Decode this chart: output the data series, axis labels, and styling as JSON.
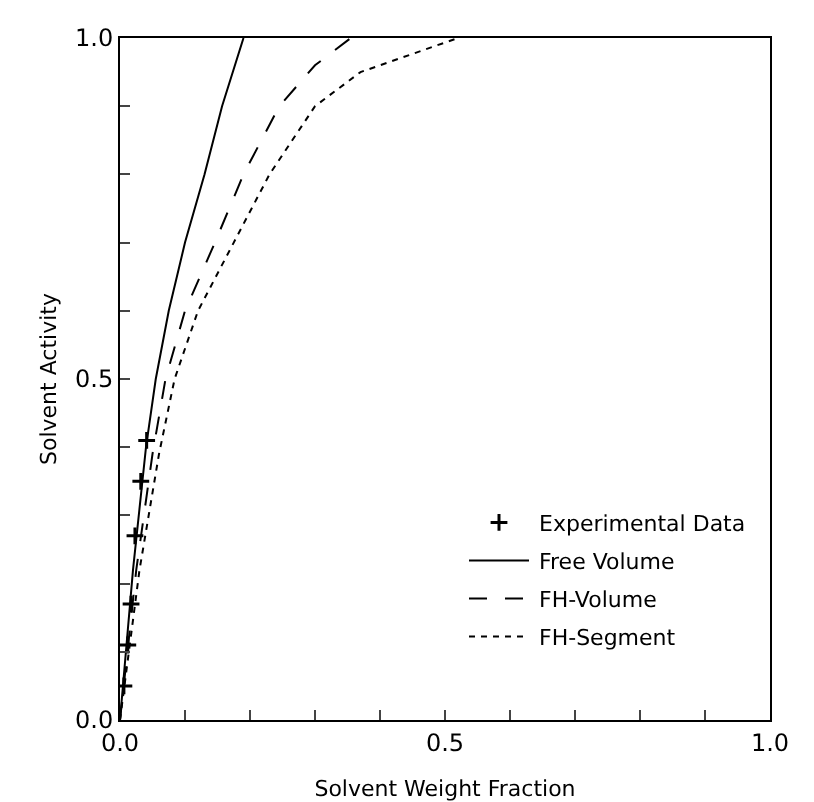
{
  "chart_data": {
    "type": "line",
    "xlabel": "Solvent Weight Fraction",
    "ylabel": "Solvent Activity",
    "xlim": [
      0,
      1
    ],
    "ylim": [
      0,
      1
    ],
    "xticks": [
      {
        "value": 0,
        "label": "0.0"
      },
      {
        "value": 0.1,
        "label": null
      },
      {
        "value": 0.2,
        "label": null
      },
      {
        "value": 0.3,
        "label": null
      },
      {
        "value": 0.4,
        "label": null
      },
      {
        "value": 0.5,
        "label": "0.5"
      },
      {
        "value": 0.6,
        "label": null
      },
      {
        "value": 0.7,
        "label": null
      },
      {
        "value": 0.8,
        "label": null
      },
      {
        "value": 0.9,
        "label": null
      },
      {
        "value": 1,
        "label": "1.0"
      }
    ],
    "yticks": [
      {
        "value": 0,
        "label": "0.0"
      },
      {
        "value": 0.1,
        "label": null
      },
      {
        "value": 0.2,
        "label": null
      },
      {
        "value": 0.3,
        "label": null
      },
      {
        "value": 0.4,
        "label": null
      },
      {
        "value": 0.5,
        "label": "0.5"
      },
      {
        "value": 0.6,
        "label": null
      },
      {
        "value": 0.7,
        "label": null
      },
      {
        "value": 0.8,
        "label": null
      },
      {
        "value": 0.9,
        "label": null
      },
      {
        "value": 1,
        "label": "1.0"
      }
    ],
    "grid": false,
    "legend": "bottom right",
    "series": [
      {
        "name": "Experimental Data",
        "type": "scatter",
        "marker": "cross",
        "color": "#000000",
        "x": [
          0.006,
          0.012,
          0.017,
          0.023,
          0.032,
          0.041
        ],
        "values": [
          0.05,
          0.11,
          0.17,
          0.27,
          0.35,
          0.41
        ]
      },
      {
        "name": "Free Volume",
        "line_style": "solid",
        "color": "#000000",
        "x": [
          0,
          0.02,
          0.04,
          0.055,
          0.075,
          0.1,
          0.13,
          0.157,
          0.19
        ],
        "values": [
          0,
          0.22,
          0.4,
          0.5,
          0.6,
          0.7,
          0.8,
          0.9,
          1.0
        ]
      },
      {
        "name": "FH-Volume",
        "line_style": "dashed",
        "color": "#000000",
        "x": [
          0,
          0.025,
          0.05,
          0.07,
          0.1,
          0.146,
          0.19,
          0.245,
          0.3,
          0.355
        ],
        "values": [
          0,
          0.22,
          0.39,
          0.5,
          0.6,
          0.7,
          0.8,
          0.9,
          0.96,
          1.0
        ]
      },
      {
        "name": "FH-Segment",
        "line_style": "dotted",
        "color": "#000000",
        "x": [
          0,
          0.03,
          0.06,
          0.084,
          0.12,
          0.175,
          0.23,
          0.3,
          0.37,
          0.43,
          0.52
        ],
        "values": [
          0,
          0.22,
          0.39,
          0.5,
          0.6,
          0.7,
          0.8,
          0.9,
          0.95,
          0.97,
          1.0
        ]
      }
    ]
  }
}
